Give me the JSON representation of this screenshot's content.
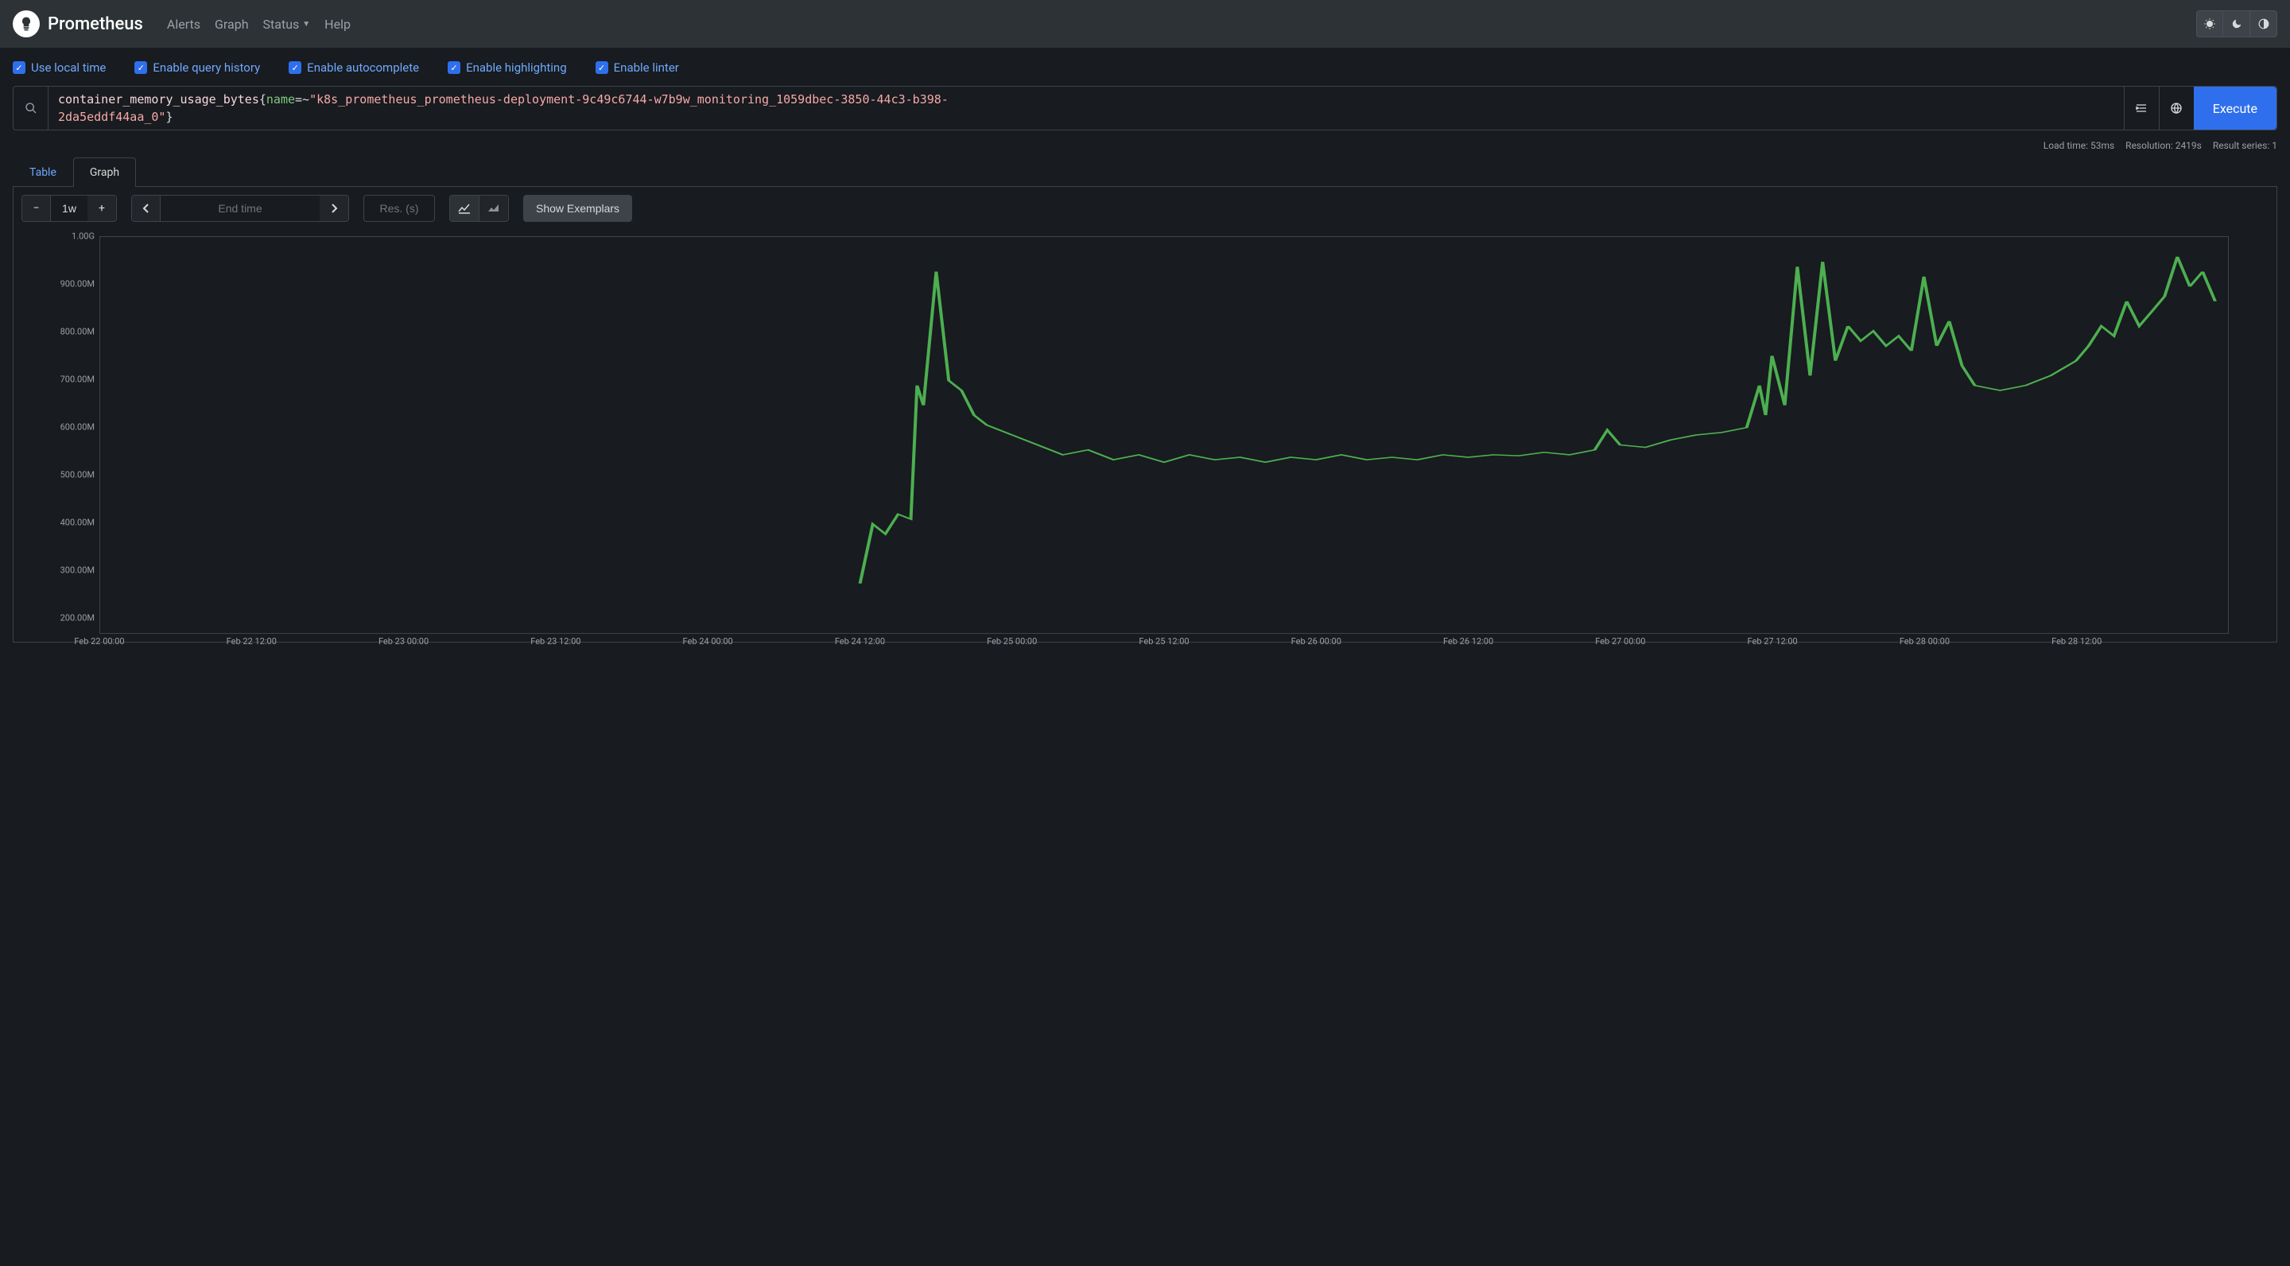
{
  "brand": "Prometheus",
  "nav": {
    "alerts": "Alerts",
    "graph": "Graph",
    "status": "Status",
    "help": "Help"
  },
  "options": {
    "local_time": "Use local time",
    "query_history": "Enable query history",
    "autocomplete": "Enable autocomplete",
    "highlighting": "Enable highlighting",
    "linter": "Enable linter"
  },
  "expr": {
    "metric": "container_memory_usage_bytes",
    "label": "name",
    "op": "=~",
    "value_l1": "\"k8s_prometheus_prometheus-deployment-9c49c6744-w7b9w_monitoring_1059dbec-3850-44c3-b398-",
    "value_l2": "2da5eddf44aa_0\""
  },
  "execute": "Execute",
  "stats": {
    "load": "Load time: 53ms",
    "resolution": "Resolution: 2419s",
    "series": "Result series: 1"
  },
  "tabs": {
    "table": "Table",
    "graph": "Graph"
  },
  "range": "1w",
  "end_time_placeholder": "End time",
  "res_placeholder": "Res. (s)",
  "exemplars": "Show Exemplars",
  "chart": {
    "type": "line",
    "line_color": "#4caf50",
    "background": "#181b1f",
    "border_color": "#3d4348",
    "y_ticks": [
      "1.00G",
      "900.00M",
      "800.00M",
      "700.00M",
      "600.00M",
      "500.00M",
      "400.00M",
      "300.00M",
      "200.00M"
    ],
    "y_values": [
      1000,
      900,
      800,
      700,
      600,
      500,
      400,
      300,
      200
    ],
    "ylim": [
      200,
      1000
    ],
    "x_labels": [
      "Feb 22 00:00",
      "Feb 22 12:00",
      "Feb 23 00:00",
      "Feb 23 12:00",
      "Feb 24 00:00",
      "Feb 24 12:00",
      "Feb 25 00:00",
      "Feb 25 12:00",
      "Feb 26 00:00",
      "Feb 26 12:00",
      "Feb 27 00:00",
      "Feb 27 12:00",
      "Feb 28 00:00",
      "Feb 28 12:00"
    ],
    "xlim": [
      0,
      168
    ],
    "data_start_x": 60,
    "series": [
      [
        60,
        300
      ],
      [
        61,
        420
      ],
      [
        62,
        400
      ],
      [
        63,
        440
      ],
      [
        64,
        430
      ],
      [
        64.5,
        700
      ],
      [
        65,
        660
      ],
      [
        66,
        930
      ],
      [
        67,
        710
      ],
      [
        68,
        690
      ],
      [
        69,
        640
      ],
      [
        70,
        620
      ],
      [
        72,
        600
      ],
      [
        74,
        580
      ],
      [
        76,
        560
      ],
      [
        78,
        570
      ],
      [
        80,
        550
      ],
      [
        82,
        560
      ],
      [
        84,
        545
      ],
      [
        86,
        560
      ],
      [
        88,
        550
      ],
      [
        90,
        555
      ],
      [
        92,
        545
      ],
      [
        94,
        555
      ],
      [
        96,
        550
      ],
      [
        98,
        560
      ],
      [
        100,
        550
      ],
      [
        102,
        555
      ],
      [
        104,
        550
      ],
      [
        106,
        560
      ],
      [
        108,
        555
      ],
      [
        110,
        560
      ],
      [
        112,
        558
      ],
      [
        114,
        565
      ],
      [
        116,
        560
      ],
      [
        118,
        570
      ],
      [
        119,
        610
      ],
      [
        120,
        580
      ],
      [
        122,
        575
      ],
      [
        124,
        590
      ],
      [
        126,
        600
      ],
      [
        128,
        605
      ],
      [
        130,
        615
      ],
      [
        131,
        700
      ],
      [
        131.5,
        640
      ],
      [
        132,
        760
      ],
      [
        133,
        660
      ],
      [
        134,
        940
      ],
      [
        135,
        720
      ],
      [
        136,
        950
      ],
      [
        137,
        750
      ],
      [
        138,
        820
      ],
      [
        139,
        790
      ],
      [
        140,
        810
      ],
      [
        141,
        780
      ],
      [
        142,
        800
      ],
      [
        143,
        770
      ],
      [
        144,
        920
      ],
      [
        145,
        780
      ],
      [
        146,
        830
      ],
      [
        147,
        740
      ],
      [
        148,
        700
      ],
      [
        149,
        695
      ],
      [
        150,
        690
      ],
      [
        152,
        700
      ],
      [
        154,
        720
      ],
      [
        156,
        750
      ],
      [
        157,
        780
      ],
      [
        158,
        820
      ],
      [
        159,
        800
      ],
      [
        160,
        870
      ],
      [
        161,
        820
      ],
      [
        162,
        850
      ],
      [
        163,
        880
      ],
      [
        164,
        960
      ],
      [
        165,
        900
      ],
      [
        166,
        930
      ],
      [
        167,
        870
      ]
    ]
  }
}
